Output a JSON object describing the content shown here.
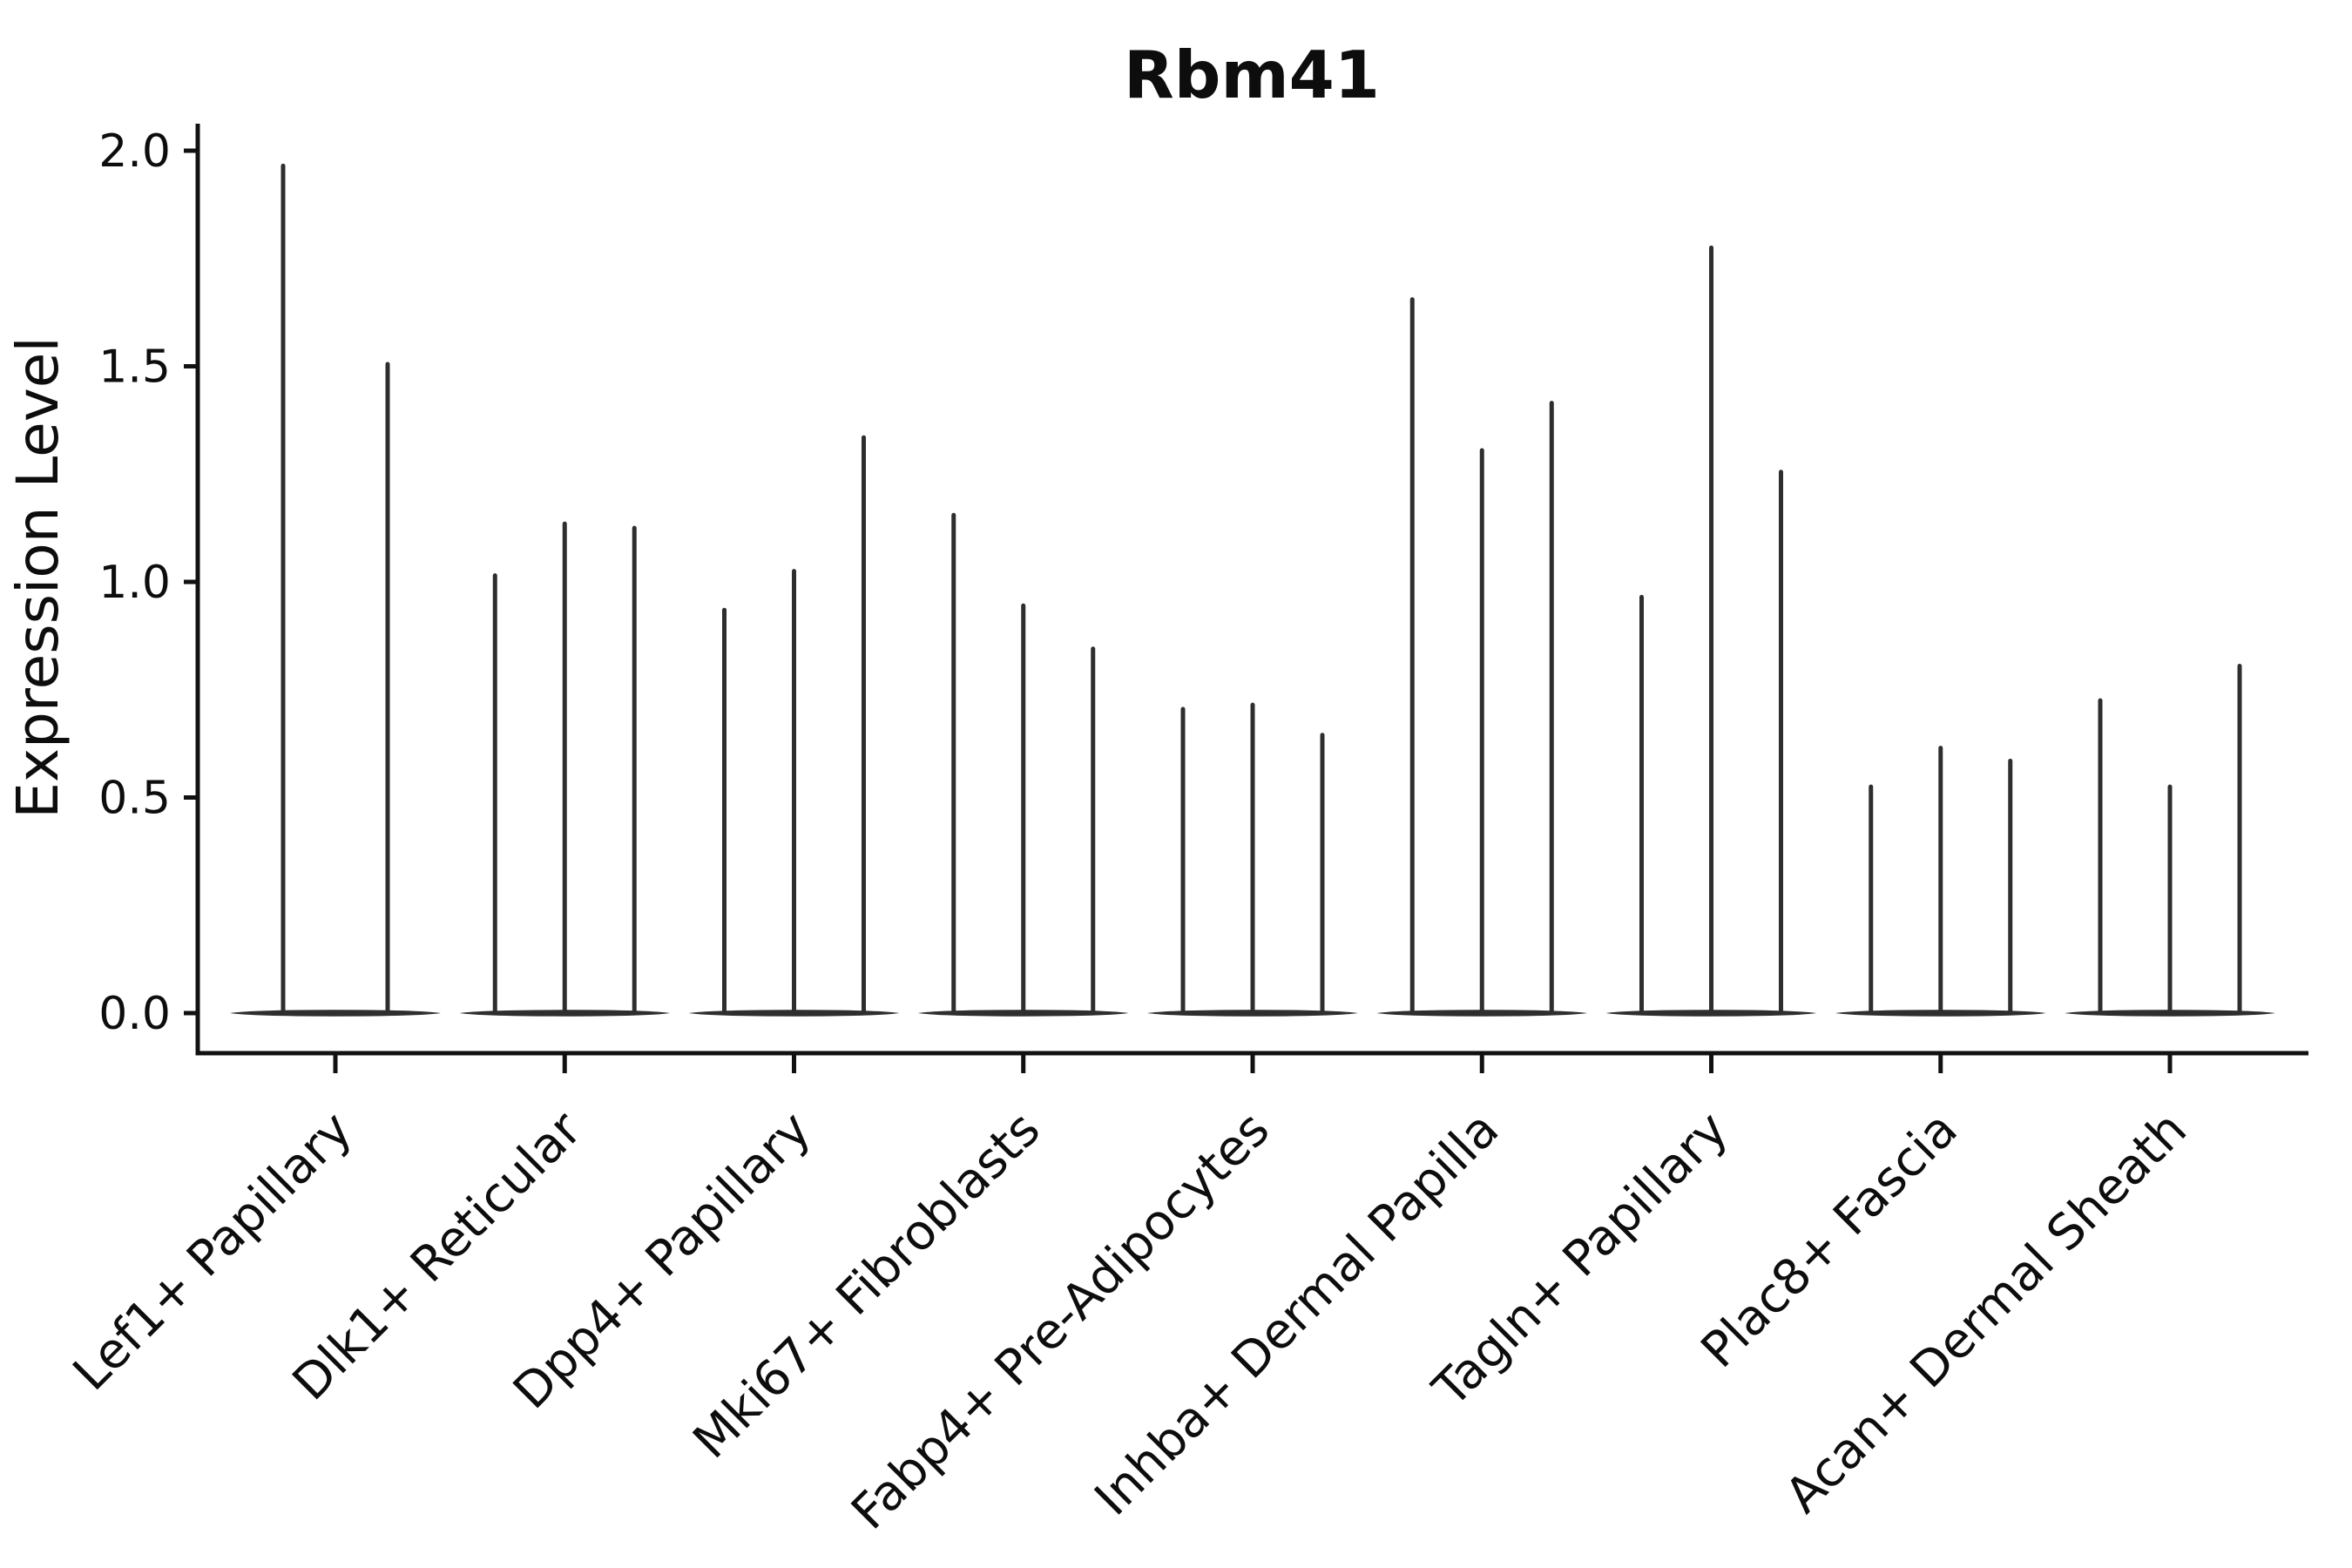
{
  "chart_data": {
    "type": "violin",
    "title": "Rbm41",
    "ylabel": "Expression Level",
    "xlabel": "",
    "ylim": [
      0,
      2.06
    ],
    "yticks": [
      "0.0",
      "0.5",
      "1.0",
      "1.5",
      "2.0"
    ],
    "grid": false,
    "legend": null,
    "background": "#ffffff",
    "ink_color": "#111111",
    "violin_color": "#2e2e2e",
    "categories": [
      "Lef1+ Papillary",
      "Dlk1+ Reticular",
      "Dpp4+ Papillary",
      "Mki67+ Fibroblasts",
      "Fabp4+ Pre-Adipocytes",
      "Inhba+ Dermal Papilla",
      "Tagln+ Papillary",
      "Plac8+ Fascia",
      "Acan+ Dermal Sheath"
    ],
    "series": [
      {
        "category": "Lef1+ Papillary",
        "violin_peak_values": [
          1.97,
          1.51
        ]
      },
      {
        "category": "Dlk1+ Reticular",
        "violin_peak_values": [
          1.02,
          1.14,
          1.13
        ]
      },
      {
        "category": "Dpp4+ Papillary",
        "violin_peak_values": [
          0.94,
          1.03,
          1.34
        ]
      },
      {
        "category": "Mki67+ Fibroblasts",
        "violin_peak_values": [
          1.16,
          0.95,
          0.85
        ]
      },
      {
        "category": "Fabp4+ Pre-Adipocytes",
        "violin_peak_values": [
          0.71,
          0.72,
          0.65
        ]
      },
      {
        "category": "Inhba+ Dermal Papilla",
        "violin_peak_values": [
          1.66,
          1.31,
          1.42
        ]
      },
      {
        "category": "Tagln+ Papillary",
        "violin_peak_values": [
          0.97,
          1.78,
          1.26
        ]
      },
      {
        "category": "Plac8+ Fascia",
        "violin_peak_values": [
          0.53,
          0.62,
          0.59
        ]
      },
      {
        "category": "Acan+ Dermal Sheath",
        "violin_peak_values": [
          0.73,
          0.53,
          0.81
        ]
      }
    ],
    "violin_shape_note": "Each violin is extremely bottom-heavy: a wide flat lens of density at expression level 0 with a hair-thin spike rising to its peak value."
  }
}
